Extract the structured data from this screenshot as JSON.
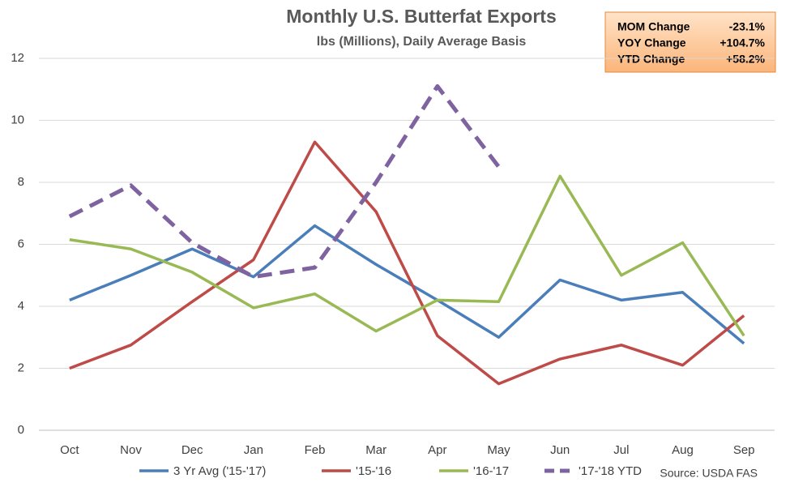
{
  "chart_data": {
    "type": "line",
    "title": "Monthly U.S. Butterfat Exports",
    "subtitle": "lbs (Millions), Daily Average Basis",
    "categories": [
      "Oct",
      "Nov",
      "Dec",
      "Jan",
      "Feb",
      "Mar",
      "Apr",
      "May",
      "Jun",
      "Jul",
      "Aug",
      "Sep"
    ],
    "series": [
      {
        "name": "3 Yr Avg ('15-'17)",
        "color": "#4a7ebb",
        "dashed": false,
        "values": [
          4.2,
          5.0,
          5.85,
          4.95,
          6.6,
          5.35,
          4.2,
          3.0,
          4.85,
          4.2,
          4.45,
          2.8
        ]
      },
      {
        "name": "'15-'16",
        "color": "#be4b48",
        "dashed": false,
        "values": [
          2.0,
          2.75,
          4.15,
          5.5,
          9.3,
          7.05,
          3.05,
          1.5,
          2.3,
          2.75,
          2.1,
          3.7
        ]
      },
      {
        "name": "'16-'17",
        "color": "#98b954",
        "dashed": false,
        "values": [
          6.15,
          5.85,
          5.1,
          3.95,
          4.4,
          3.2,
          4.2,
          4.15,
          8.2,
          5.0,
          6.05,
          3.05
        ]
      },
      {
        "name": "'17-'18 YTD",
        "color": "#7f63a1",
        "dashed": true,
        "values": [
          6.9,
          7.9,
          6.05,
          4.95,
          5.25,
          8.0,
          11.1,
          8.5,
          null,
          null,
          null,
          null
        ]
      }
    ],
    "ylim": [
      0,
      12
    ],
    "yticks": [
      0,
      2,
      4,
      6,
      8,
      10,
      12
    ],
    "grid": true,
    "legend": "bottom",
    "source": "Source: USDA FAS"
  },
  "summary": {
    "rows": [
      [
        "MOM Change",
        "-23.1%"
      ],
      [
        "YOY Change",
        "+104.7%"
      ],
      [
        "YTD Change",
        "+58.2%"
      ]
    ]
  }
}
